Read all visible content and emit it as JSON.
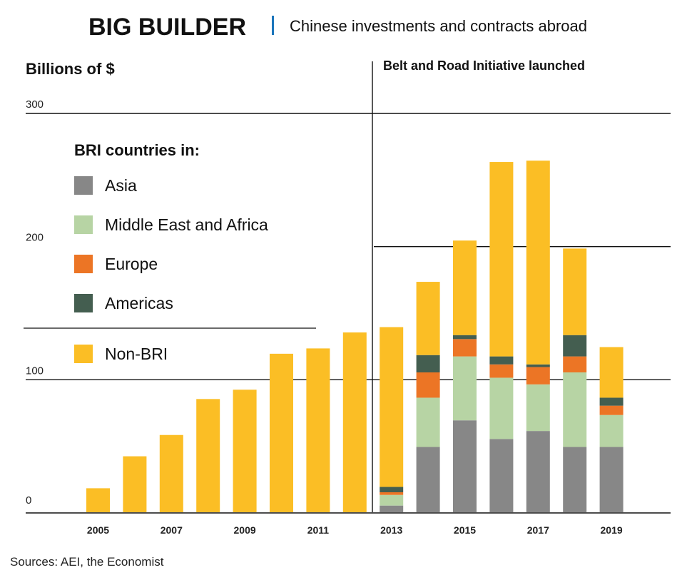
{
  "header": {
    "title": "BIG BUILDER",
    "subtitle": "Chinese investments and contracts abroad"
  },
  "source": "Sources: AEI, the Economist",
  "chart_data": {
    "type": "bar",
    "stacked": true,
    "ylabel": "Billions of $",
    "ylim": [
      0,
      300
    ],
    "yticks": [
      0,
      100,
      200,
      300
    ],
    "x": [
      2005,
      2006,
      2007,
      2008,
      2009,
      2010,
      2011,
      2012,
      2013,
      2014,
      2015,
      2016,
      2017,
      2018,
      2019
    ],
    "xtick_labels": [
      "2005",
      "2007",
      "2009",
      "2011",
      "2013",
      "2015",
      "2017",
      "2019"
    ],
    "annotation": {
      "label": "Belt and Road Initiative launched",
      "at_x_between": [
        2012,
        2013
      ]
    },
    "legend": {
      "title": "BRI countries in:",
      "placement": "top-left"
    },
    "series": [
      {
        "name": "Asia",
        "color": "#878787",
        "values": [
          0,
          0,
          0,
          0,
          0,
          0,
          0,
          0,
          5,
          49,
          69,
          55,
          61,
          49,
          49
        ]
      },
      {
        "name": "Middle East and Africa",
        "color": "#b7d4a4",
        "values": [
          0,
          0,
          0,
          0,
          0,
          0,
          0,
          0,
          8,
          37,
          48,
          46,
          35,
          56,
          24
        ]
      },
      {
        "name": "Europe",
        "color": "#ec7525",
        "values": [
          0,
          0,
          0,
          0,
          0,
          0,
          0,
          0,
          2,
          19,
          13,
          10,
          13,
          12,
          7
        ]
      },
      {
        "name": "Americas",
        "color": "#445e50",
        "values": [
          0,
          0,
          0,
          0,
          0,
          0,
          0,
          0,
          4,
          13,
          3,
          6,
          2,
          16,
          6
        ]
      },
      {
        "name": "Non-BRI",
        "color": "#fbbe25",
        "values": [
          18,
          42,
          58,
          85,
          92,
          119,
          123,
          135,
          120,
          55,
          71,
          146,
          153,
          65,
          38
        ]
      }
    ]
  }
}
